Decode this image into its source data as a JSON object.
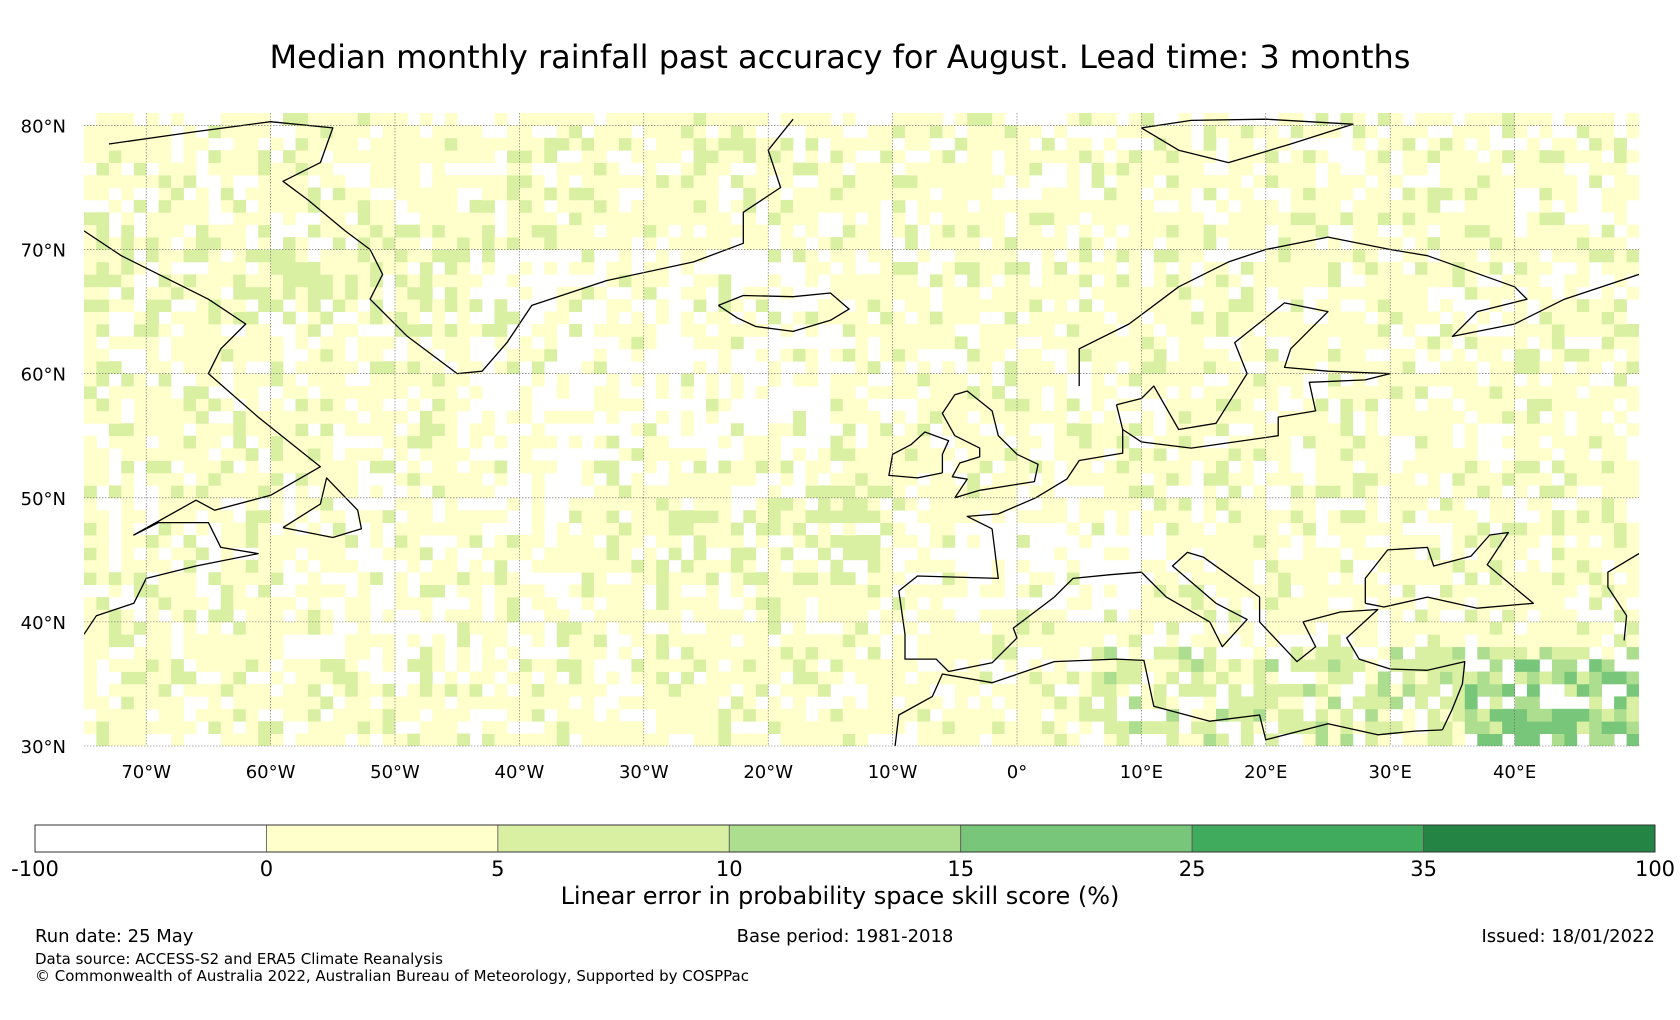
{
  "title": "Median monthly rainfall past accuracy for August. Lead time: 3 months",
  "map": {
    "lat_range": [
      30,
      80
    ],
    "lon_range": [
      -75,
      50
    ],
    "lat_ticks": [
      {
        "value": 80,
        "label": "80°N"
      },
      {
        "value": 70,
        "label": "70°N"
      },
      {
        "value": 60,
        "label": "60°N"
      },
      {
        "value": 50,
        "label": "50°N"
      },
      {
        "value": 40,
        "label": "40°N"
      },
      {
        "value": 30,
        "label": "30°N"
      }
    ],
    "lon_ticks": [
      {
        "value": -70,
        "label": "70°W"
      },
      {
        "value": -60,
        "label": "60°W"
      },
      {
        "value": -50,
        "label": "50°W"
      },
      {
        "value": -40,
        "label": "40°W"
      },
      {
        "value": -30,
        "label": "30°W"
      },
      {
        "value": -20,
        "label": "20°W"
      },
      {
        "value": -10,
        "label": "10°W"
      },
      {
        "value": 0,
        "label": "0°"
      },
      {
        "value": 10,
        "label": "10°E"
      },
      {
        "value": 20,
        "label": "20°E"
      },
      {
        "value": 30,
        "label": "30°E"
      },
      {
        "value": 40,
        "label": "40°E"
      }
    ],
    "gridlines": true
  },
  "colorbar": {
    "label": "Linear error in probability space skill score (%)",
    "bounds": [
      "-100",
      "0",
      "5",
      "10",
      "15",
      "25",
      "35",
      "100"
    ],
    "colors": [
      "#ffffff",
      "#ffffcc",
      "#d9f0a3",
      "#addd8e",
      "#78c679",
      "#41ab5d",
      "#238443"
    ]
  },
  "footer": {
    "run_date": "Run date: 25 May",
    "base_period": "Base period: 1981-2018",
    "issued": "Issued: 18/01/2022",
    "data_source": "Data source: ACCESS-S2 and ERA5 Climate Reanalysis",
    "copyright": "© Commonwealth of Australia 2022, Australian Bureau of Meteorology, Supported by COSPPac"
  }
}
